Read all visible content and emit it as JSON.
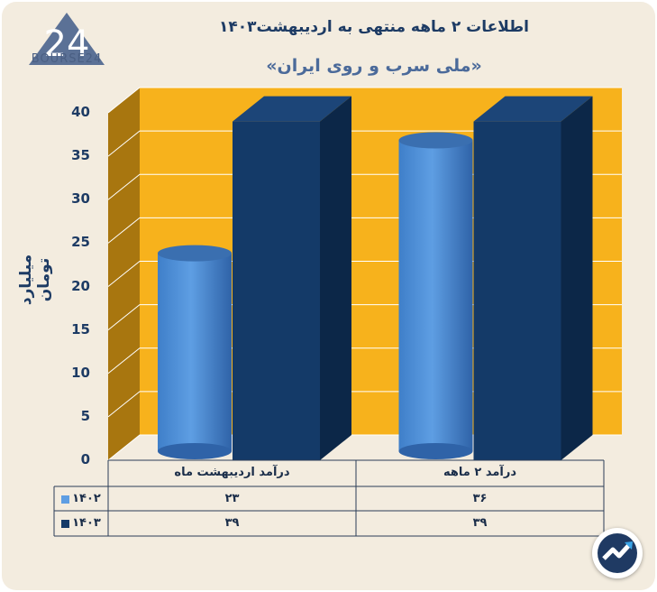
{
  "brand": {
    "logo_text": "BOURSE24"
  },
  "chart_data": {
    "type": "bar",
    "title": "اطلاعات ۲ ماهه منتهی به اردیبهشت۱۴۰۳",
    "subtitle": "«ملی سرب و روی ایران»",
    "ylabel": "میلیارد تومان",
    "xlabel": "",
    "ylim": [
      0,
      40
    ],
    "yticks": [
      "0",
      "5",
      "10",
      "15",
      "20",
      "25",
      "30",
      "35",
      "40"
    ],
    "categories": [
      "درآمد اردیبهشت ماه",
      "درآمد ۲ ماهه"
    ],
    "series": [
      {
        "name": "۱۴۰۲",
        "values": [
          23,
          36
        ],
        "value_labels": [
          "۲۳",
          "۳۶"
        ],
        "color": "#5e9ee3",
        "shape": "cylinder"
      },
      {
        "name": "۱۴۰۳",
        "values": [
          39,
          39
        ],
        "value_labels": [
          "۳۹",
          "۳۹"
        ],
        "color": "#143a68",
        "shape": "box"
      }
    ],
    "background_color": "#f7b21c",
    "grid": true,
    "legend": "table-left"
  }
}
